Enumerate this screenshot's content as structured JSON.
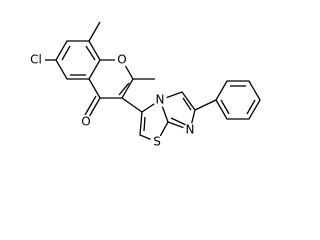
{
  "atom_labels": [
    "Cl",
    "O",
    "O",
    "N",
    "N",
    "S"
  ]
}
